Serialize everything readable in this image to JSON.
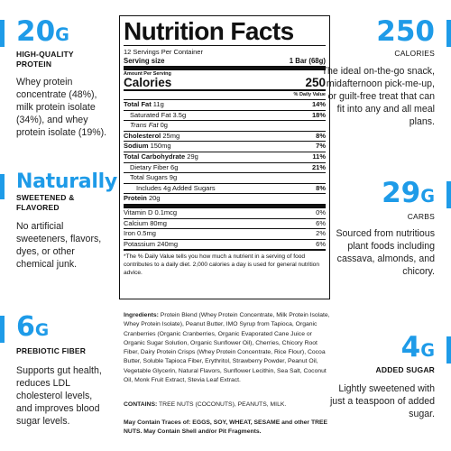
{
  "left": {
    "protein": {
      "big_value": "20",
      "big_unit": "G",
      "label": "HIGH-QUALITY PROTEIN",
      "description": "Whey protein concentrate (48%), milk protein isolate (34%), and whey protein isolate (19%)."
    },
    "natural": {
      "big_value": "Naturally",
      "label": "SWEETENED & FLAVORED",
      "description": "No artificial sweeteners, flavors, dyes, or other chemical junk."
    },
    "fiber": {
      "big_value": "6",
      "big_unit": "G",
      "label": "PREBIOTIC FIBER",
      "description": "Supports gut health, reduces LDL cholesterol levels, and improves blood sugar levels."
    }
  },
  "right": {
    "calories": {
      "big_value": "250",
      "label": "CALORIES",
      "description": "The ideal on-the-go snack, midafternoon pick-me-up, or guilt-free treat that can fit into any and all meal plans."
    },
    "carbs": {
      "big_value": "29",
      "big_unit": "G",
      "label": "CARBS",
      "description": "Sourced from nutritious plant foods including cassava, almonds, and chicory."
    },
    "sugar": {
      "big_value": "4",
      "big_unit": "G",
      "label": "ADDED SUGAR",
      "description": "Lightly sweetened with just a teaspoon of added sugar."
    }
  },
  "nutrition": {
    "title": "Nutrition Facts",
    "servings_per_container": "12 Servings Per Container",
    "serving_size_label": "Serving size",
    "serving_size_value": "1 Bar (68g)",
    "amount_per_serving": "Amount Per Serving",
    "calories_label": "Calories",
    "calories_value": "250",
    "dv_header": "% Daily Value",
    "rows": {
      "total_fat": {
        "name": "Total Fat",
        "amount": "11g",
        "dv": "14%"
      },
      "sat_fat": {
        "name": "Saturated Fat",
        "amount": "3.5g",
        "dv": "18%"
      },
      "trans_fat": {
        "name": "Trans Fat",
        "amount": "0g"
      },
      "cholesterol": {
        "name": "Cholesterol",
        "amount": "25mg",
        "dv": "8%"
      },
      "sodium": {
        "name": "Sodium",
        "amount": "150mg",
        "dv": "7%"
      },
      "carb": {
        "name": "Total Carbohydrate",
        "amount": "29g",
        "dv": "11%"
      },
      "fiber": {
        "name": "Dietary Fiber",
        "amount": "6g",
        "dv": "21%"
      },
      "sugars": {
        "name": "Total Sugars",
        "amount": "9g"
      },
      "added_sugars": {
        "name": "Includes 4g Added Sugars",
        "dv": "8%"
      },
      "protein": {
        "name": "Protein",
        "amount": "20g"
      },
      "vit_d": {
        "name": "Vitamin D",
        "amount": "0.1mcg",
        "dv": "0%"
      },
      "calcium": {
        "name": "Calcium",
        "amount": "80mg",
        "dv": "6%"
      },
      "iron": {
        "name": "Iron",
        "amount": "0.5mg",
        "dv": "2%"
      },
      "potassium": {
        "name": "Potassium",
        "amount": "240mg",
        "dv": "6%"
      }
    },
    "footnote": "*The % Daily Value tells you how much a nutrient in a serving of food contributes to a daily diet. 2,000 calories a day is used for general nutrition advice."
  },
  "ingredients": {
    "heading": "Ingredients:",
    "text": "Protein Blend (Whey Protein Concentrate, Milk Protein Isolate, Whey Protein Isolate), Peanut Butter, IMO Syrup from Tapioca, Organic Cranberries (Organic Cranberries, Organic Evaporated Cane Juice or Organic Sugar Solution, Organic Sunflower Oil), Cherries, Chicory Root Fiber, Dairy Protein Crisps (Whey Protein Concentrate, Rice Flour), Cocoa Butter, Soluble Tapioca Fiber, Erythritol, Strawberry Powder, Peanut Oil, Vegetable Glycerin, Natural Flavors, Sunflower Lecithin, Sea Salt, Coconut Oil, Monk Fruit Extract, Stevia Leaf Extract.",
    "contains_heading": "CONTAINS:",
    "contains_text": "TREE NUTS (COCONUTS), PEANUTS, MILK.",
    "traces": "May Contain Traces of: EGGS, SOY, WHEAT, SESAME and other TREE NUTS. May Contain Shell and/or Pit Fragments."
  },
  "colors": {
    "accent": "#1e9be8",
    "text": "#1a1a1a"
  }
}
